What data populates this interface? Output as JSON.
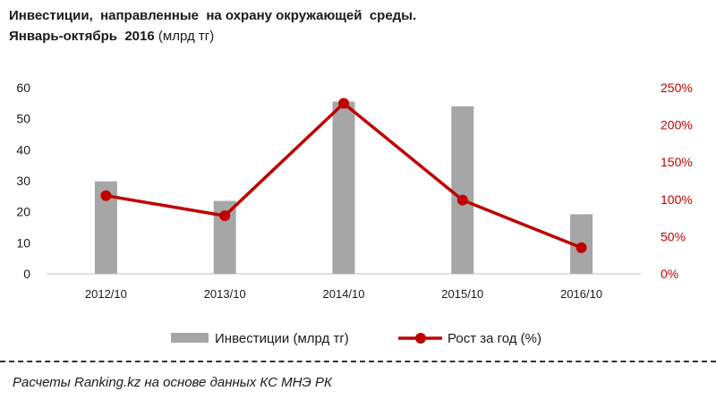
{
  "title": {
    "line1": "Инвестиции,  направленные  на охрану окружающей  среды.",
    "line2_bold": "Январь-октябрь  2016",
    "line2_unit": " (млрд тг)"
  },
  "chart_data": {
    "type": "bar",
    "categories": [
      "2012/10",
      "2013/10",
      "2014/10",
      "2015/10",
      "2016/10"
    ],
    "series": [
      {
        "name": "Инвестиции (млрд тг)",
        "type": "bar",
        "axis": "left",
        "color": "#a6a6a6",
        "values": [
          29.8,
          23.5,
          55.5,
          54.0,
          19.2
        ]
      },
      {
        "name": "Рост за год (%)",
        "type": "line",
        "axis": "right",
        "color": "#c00000",
        "values": [
          105,
          78,
          229,
          99,
          35
        ]
      }
    ],
    "y_left": {
      "ylim": [
        0,
        60
      ],
      "ticks": [
        "0",
        "10",
        "20",
        "30",
        "40",
        "50",
        "60"
      ]
    },
    "y_right": {
      "ylim": [
        0,
        250
      ],
      "ticks": [
        "0%",
        "50%",
        "100%",
        "150%",
        "200%",
        "250%"
      ],
      "color": "#c00000"
    },
    "grid": false,
    "legend_position": "bottom"
  },
  "source": "Расчеты Ranking.kz на основе данных КС МНЭ РК"
}
